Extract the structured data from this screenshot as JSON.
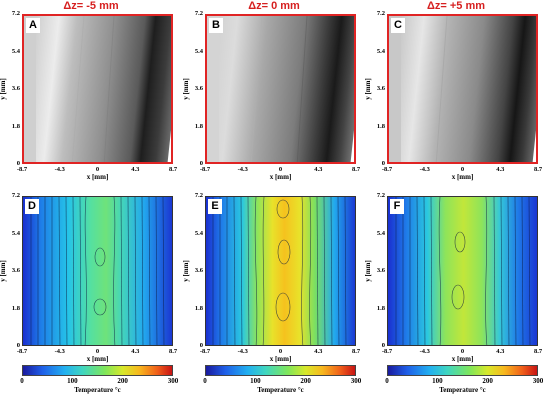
{
  "titles": {
    "a": "Δz= -5 mm",
    "b": "Δz= 0 mm",
    "c": "Δz= +5 mm"
  },
  "labels": {
    "a": "A",
    "b": "B",
    "c": "C",
    "d": "D",
    "e": "E",
    "f": "F"
  },
  "axes": {
    "xlabel": "x [mm]",
    "ylabel": "y [mm]",
    "xticks": [
      "-8.7",
      "-4.3",
      "0",
      "4.3",
      "8.7"
    ],
    "yticks": [
      "0",
      "1.8",
      "3.6",
      "5.4",
      "7.2"
    ]
  },
  "colorbar": {
    "ticks": [
      "0",
      "100",
      "200",
      "300"
    ],
    "title": "Temperature °c",
    "colors": [
      "#1a1a9e",
      "#1f5fe8",
      "#22b0f0",
      "#3fd6c0",
      "#7fe65a",
      "#d8e82a",
      "#f7b81e",
      "#f0601a",
      "#c81414"
    ]
  },
  "frame_color": "#e02424"
}
